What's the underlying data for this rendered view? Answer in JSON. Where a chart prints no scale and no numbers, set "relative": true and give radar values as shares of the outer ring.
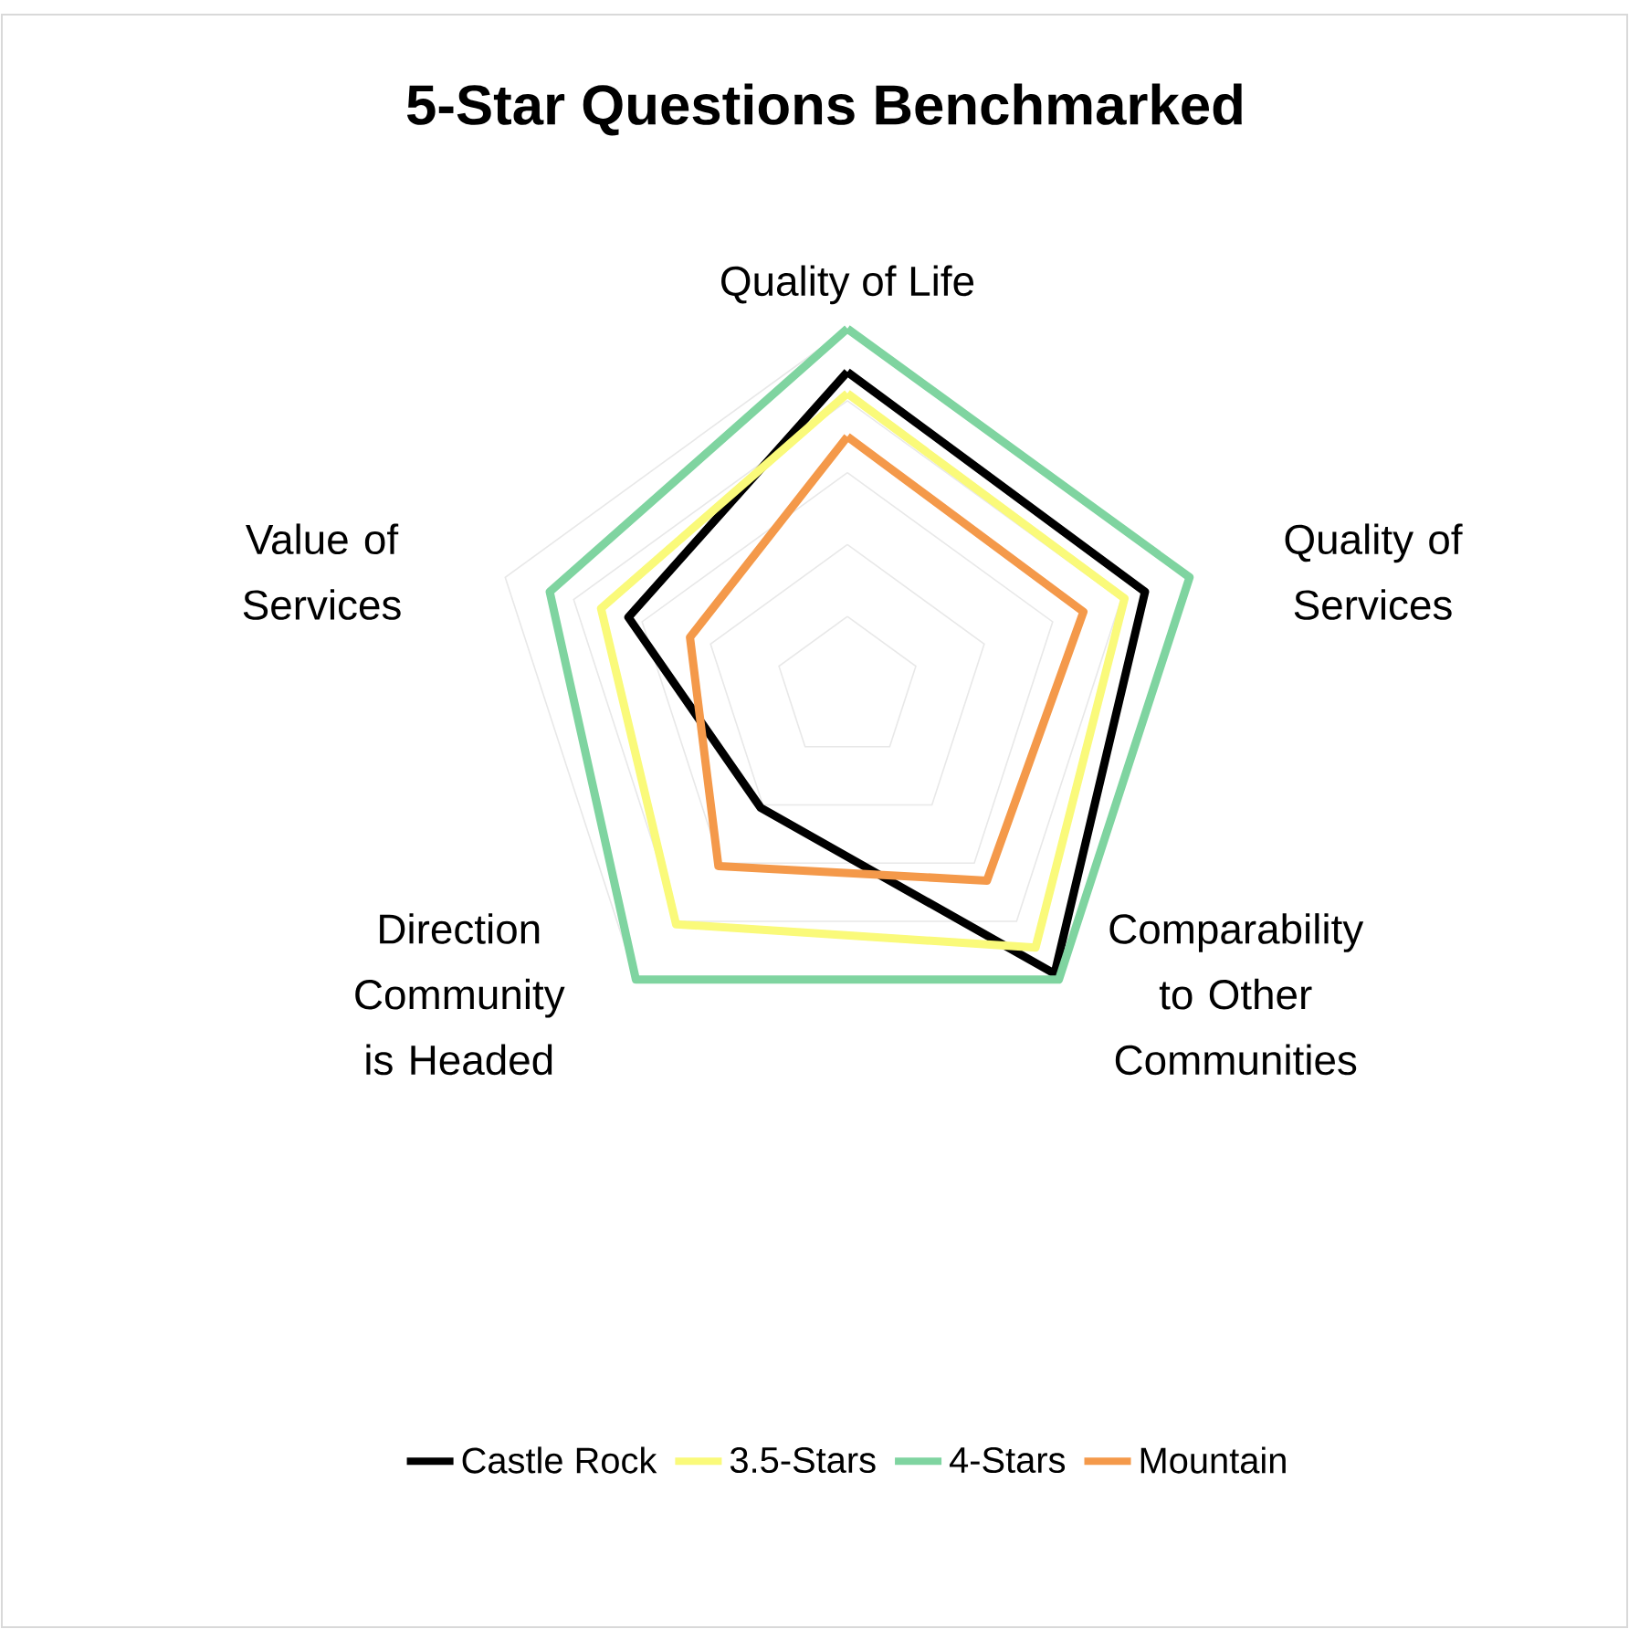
{
  "chart_data": {
    "type": "radar",
    "title": "5-Star Questions Benchmarked",
    "categories": [
      "Quality of Life",
      "Quality of Services",
      "Comparability to Other Communities",
      "Direction Community is Headed",
      "Value of Services"
    ],
    "relative": true,
    "grid": true,
    "legend": "bottom",
    "series": [
      {
        "name": "Castle Rock",
        "color": "#000000",
        "values": [
          0.88,
          0.87,
          0.98,
          0.41,
          0.64
        ]
      },
      {
        "name": "3.5-Stars",
        "color": "#fafa7a",
        "values": [
          0.82,
          0.81,
          0.89,
          0.81,
          0.72
        ]
      },
      {
        "name": "4-Stars",
        "color": "#7fd4a0",
        "values": [
          1,
          1,
          1,
          1,
          0.87
        ]
      },
      {
        "name": "Mountain",
        "color": "#f4994a",
        "values": [
          0.7,
          0.69,
          0.66,
          0.61,
          0.46
        ]
      }
    ]
  }
}
